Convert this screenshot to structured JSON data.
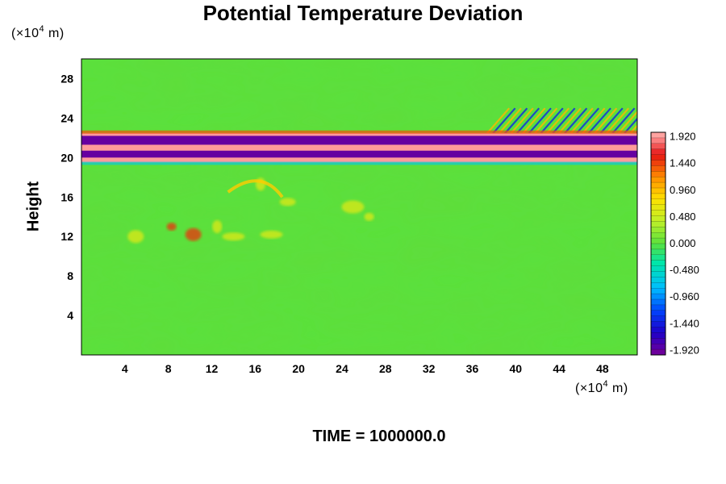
{
  "chart_data": {
    "type": "heatmap",
    "title": "Potential Temperature Deviation",
    "ylabel": "Height",
    "xlabel": "",
    "x_unit": {
      "prefix": "(×10",
      "exp": "4",
      "suffix": " m)"
    },
    "y_unit": {
      "prefix": "(×10",
      "exp": "4",
      "suffix": " m)"
    },
    "xlim": [
      0,
      51.2
    ],
    "ylim": [
      0,
      30
    ],
    "x_ticks": [
      "4",
      "8",
      "12",
      "16",
      "20",
      "24",
      "28",
      "32",
      "36",
      "40",
      "44",
      "48"
    ],
    "y_ticks": [
      "4",
      "8",
      "12",
      "16",
      "20",
      "24",
      "28"
    ],
    "colorbar": {
      "min": -2.0,
      "max": 2.0,
      "labels": [
        "1.920",
        "1.440",
        "0.960",
        "0.480",
        "0.000",
        "-0.480",
        "-0.960",
        "-1.440",
        "-1.920"
      ],
      "label_values": [
        1.92,
        1.44,
        0.96,
        0.48,
        0.0,
        -0.48,
        -0.96,
        -1.44,
        -1.92
      ],
      "levels": 40
    },
    "field_features": [
      {
        "feature": "warm layer",
        "y_range": [
          19.5,
          22.5
        ],
        "x_range": [
          0,
          51.2
        ],
        "value": 1.92
      },
      {
        "feature": "cold band",
        "y_range": [
          21.3,
          22.2
        ],
        "x_range": [
          0,
          51.2
        ],
        "value": -1.92
      },
      {
        "feature": "cold band",
        "y_range": [
          20.0,
          20.7
        ],
        "x_range": [
          0,
          51.2
        ],
        "value": -1.92
      },
      {
        "feature": "gravity wave region",
        "y_range": [
          22,
          25
        ],
        "x_range": [
          37,
          51.2
        ],
        "value": 1.0
      },
      {
        "feature": "warm plumes",
        "y_range": [
          11,
          18
        ],
        "x_range": [
          6,
          30
        ],
        "value": 0.6
      },
      {
        "feature": "background",
        "y_range": [
          0,
          30
        ],
        "x_range": [
          0,
          51.2
        ],
        "value": 0.0
      }
    ]
  },
  "footer": {
    "time_label": "TIME = 1000000.0"
  }
}
